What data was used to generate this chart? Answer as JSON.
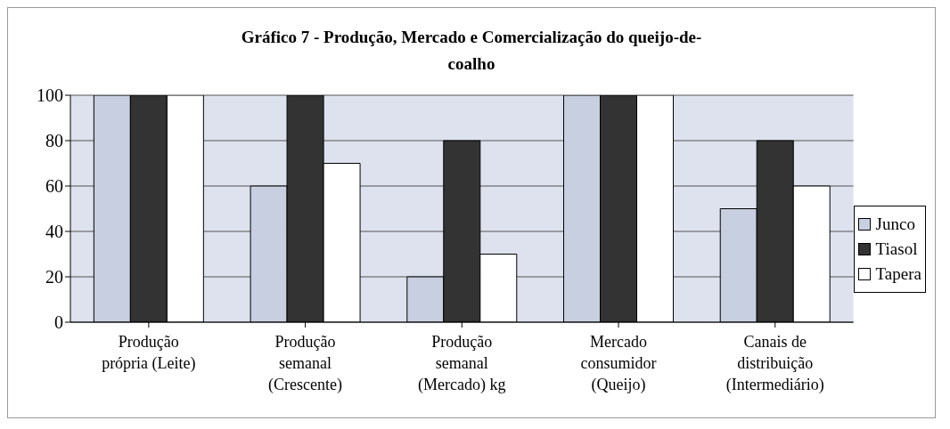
{
  "chart_data": {
    "type": "bar",
    "title": "Gráfico 7 - Produção, Mercado e Comercialização do queijo-de-coalho",
    "categories": [
      "Produção própria (Leite)",
      "Produção semanal (Crescente)",
      "Produção semanal (Mercado) kg",
      "Mercado consumidor (Queijo)",
      "Canais de distribuição (Intermediário)"
    ],
    "series": [
      {
        "name": "Junco",
        "color": "#c8cfe0",
        "values": [
          100,
          60,
          20,
          100,
          50
        ]
      },
      {
        "name": "Tiasol",
        "color": "#333333",
        "values": [
          100,
          100,
          80,
          100,
          80
        ]
      },
      {
        "name": "Tapera",
        "color": "#ffffff",
        "values": [
          100,
          70,
          30,
          100,
          60
        ]
      }
    ],
    "ylim": [
      0,
      100
    ],
    "yticks": [
      0,
      20,
      40,
      60,
      80,
      100
    ],
    "grid": "y",
    "legend": "right"
  }
}
